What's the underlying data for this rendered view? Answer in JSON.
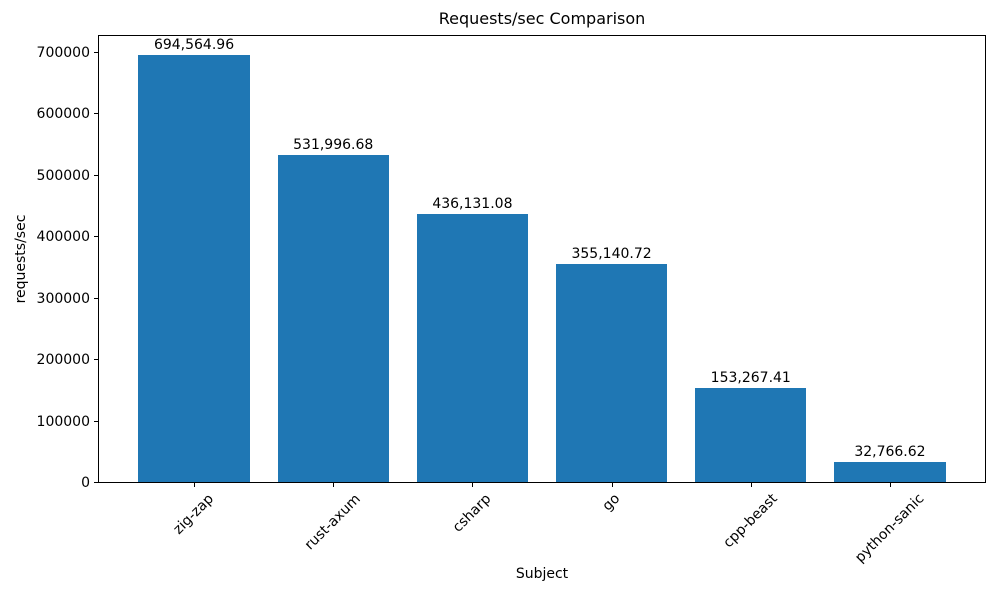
{
  "chart_data": {
    "type": "bar",
    "title": "Requests/sec Comparison",
    "xlabel": "Subject",
    "ylabel": "requests/sec",
    "categories": [
      "zig-zap",
      "rust-axum",
      "csharp",
      "go",
      "cpp-beast",
      "python-sanic"
    ],
    "values": [
      694564.96,
      531996.68,
      436131.08,
      355140.72,
      153267.41,
      32766.62
    ],
    "bar_labels": [
      "694,564.96",
      "531,996.68",
      "436,131.08",
      "355,140.72",
      "153,267.41",
      "32,766.62"
    ],
    "yticks": [
      0,
      100000,
      200000,
      300000,
      400000,
      500000,
      600000,
      700000
    ],
    "ytick_labels": [
      "0",
      "100000",
      "200000",
      "300000",
      "400000",
      "500000",
      "600000",
      "700000"
    ],
    "ylim": [
      0,
      729293
    ],
    "bar_color": "#1f77b4",
    "xtick_rotation": 45,
    "grid": false,
    "legend_position": "none"
  }
}
